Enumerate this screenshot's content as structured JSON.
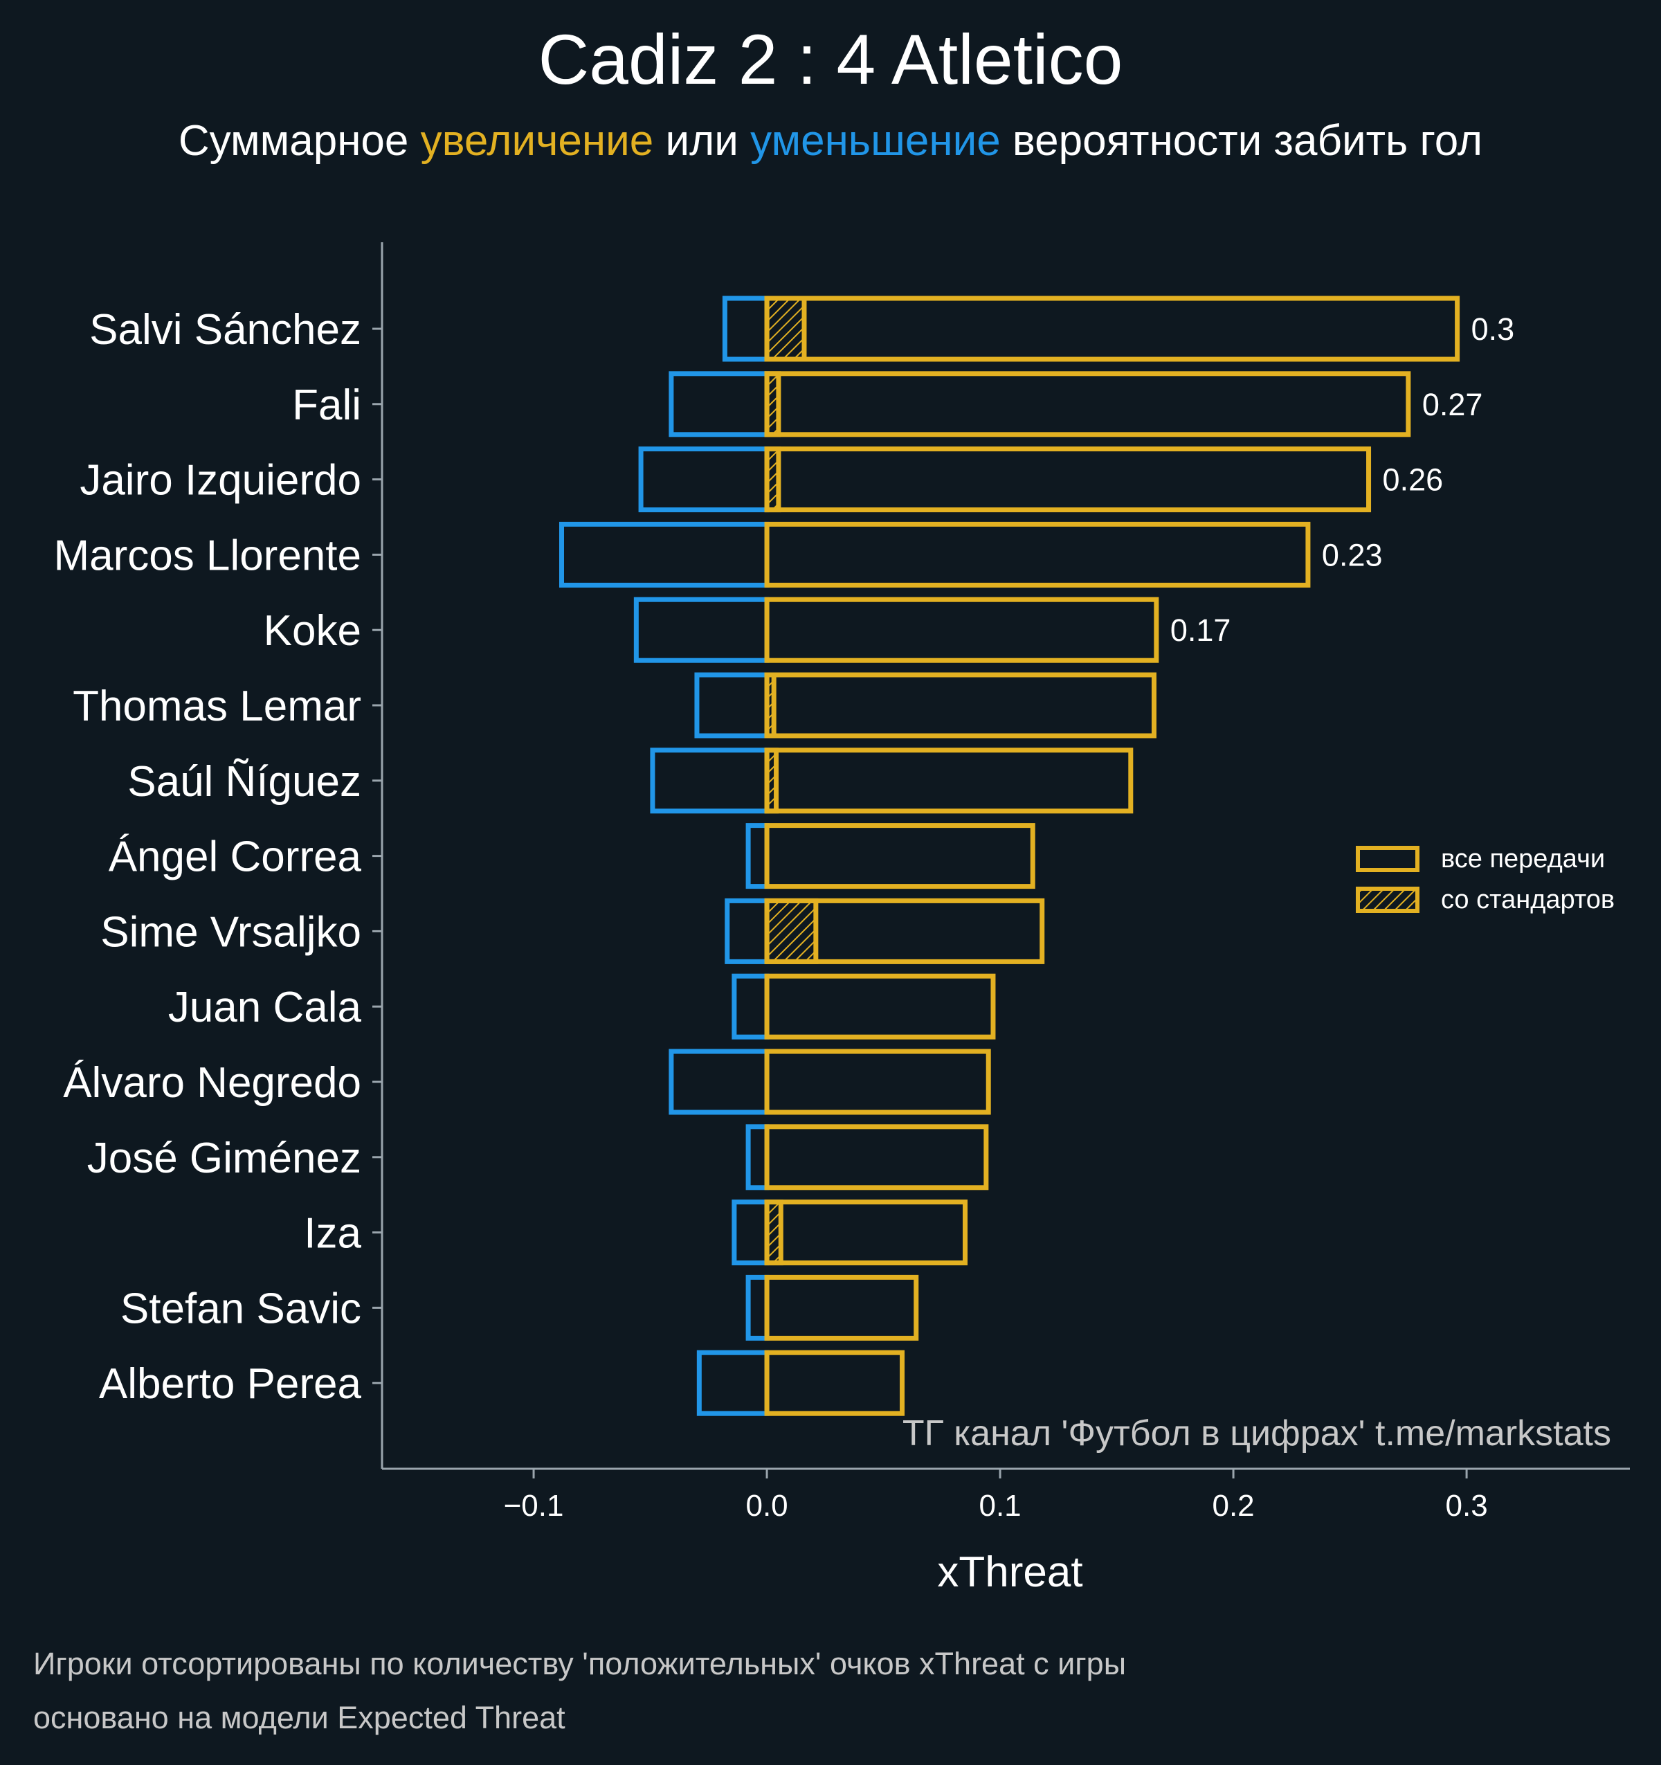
{
  "title": "Cadiz 2 : 4 Atletico",
  "subtitle": {
    "part1": "Суммарное ",
    "increase": "увеличение",
    "part2": " или ",
    "decrease": "уменьшение",
    "part3": " вероятности забить гол"
  },
  "colors": {
    "background": "#0e1820",
    "positive": "#e3b122",
    "negative": "#2196e8",
    "axis": "#9aa5ad",
    "text": "#ffffff"
  },
  "watermark": "ТГ канал 'Футбол в цифрах'  t.me/markstats",
  "footnote": {
    "line1": "Игроки отсортированы по количеству 'положительных' очков xThreat с игры",
    "line2": "основано на модели Expected Threat"
  },
  "chart_data": {
    "type": "bar",
    "orientation": "horizontal",
    "xlabel": "xThreat",
    "xlim": [
      -0.165,
      0.37
    ],
    "xticks": [
      -0.1,
      0.0,
      0.1,
      0.2,
      0.3
    ],
    "xtick_labels": [
      "−0.1",
      "0.0",
      "0.1",
      "0.2",
      "0.3"
    ],
    "legend": {
      "position": "right",
      "entries": [
        {
          "label": "все передачи",
          "style": "outline"
        },
        {
          "label": "со стандартов",
          "style": "hatched"
        }
      ]
    },
    "categories": [
      "Salvi Sánchez",
      "Fali",
      "Jairo Izquierdo",
      "Marcos Llorente",
      "Koke",
      "Thomas Lemar",
      "Saúl Ñíguez",
      "Ángel Correa",
      "Sime Vrsaljko",
      "Juan Cala",
      "Álvaro Negredo",
      "José Giménez",
      "Iza",
      "Stefan Savic",
      "Alberto Perea"
    ],
    "series": [
      {
        "name": "все передачи",
        "key": "positive",
        "values": [
          0.296,
          0.275,
          0.258,
          0.232,
          0.167,
          0.166,
          0.156,
          0.114,
          0.118,
          0.097,
          0.095,
          0.094,
          0.085,
          0.064,
          0.058
        ]
      },
      {
        "name": "со стандартов",
        "key": "set_pieces",
        "values": [
          0.016,
          0.005,
          0.005,
          0.0,
          0.0,
          0.003,
          0.004,
          0.0,
          0.021,
          0.0,
          0.0,
          0.0,
          0.006,
          0.0,
          0.0
        ]
      },
      {
        "key": "negative",
        "values": [
          -0.018,
          -0.041,
          -0.054,
          -0.088,
          -0.056,
          -0.03,
          -0.049,
          -0.008,
          -0.017,
          -0.014,
          -0.041,
          -0.008,
          -0.014,
          -0.008,
          -0.029
        ]
      }
    ],
    "value_labels": [
      "0.3",
      "0.27",
      "0.26",
      "0.23",
      "0.17"
    ]
  }
}
